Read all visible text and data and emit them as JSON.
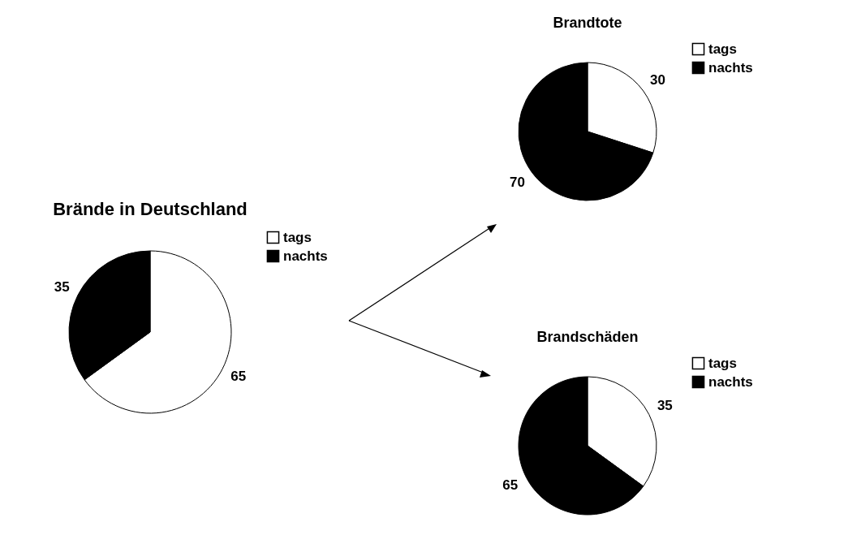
{
  "chart_data": [
    {
      "type": "pie",
      "title": "Brände in Deutschland",
      "categories": [
        "tags",
        "nachts"
      ],
      "values": [
        65,
        35
      ],
      "colors": [
        "#ffffff",
        "#000000"
      ],
      "data_labels": true,
      "legend": "top right"
    },
    {
      "type": "pie",
      "title": "Brandtote",
      "categories": [
        "tags",
        "nachts"
      ],
      "values": [
        30,
        70
      ],
      "colors": [
        "#ffffff",
        "#000000"
      ],
      "data_labels": true,
      "legend": "top right"
    },
    {
      "type": "pie",
      "title": "Brandschäden",
      "categories": [
        "tags",
        "nachts"
      ],
      "values": [
        35,
        65
      ],
      "colors": [
        "#ffffff",
        "#000000"
      ],
      "data_labels": true,
      "legend": "top right"
    }
  ]
}
